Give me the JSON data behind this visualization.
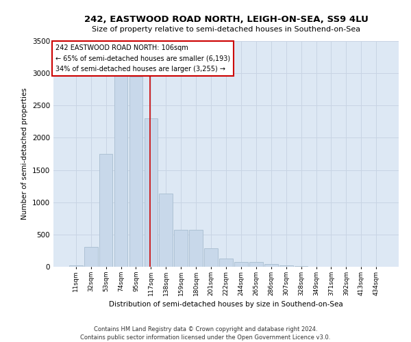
{
  "title1": "242, EASTWOOD ROAD NORTH, LEIGH-ON-SEA, SS9 4LU",
  "title2": "Size of property relative to semi-detached houses in Southend-on-Sea",
  "xlabel": "Distribution of semi-detached houses by size in Southend-on-Sea",
  "ylabel": "Number of semi-detached properties",
  "footer1": "Contains HM Land Registry data © Crown copyright and database right 2024.",
  "footer2": "Contains public sector information licensed under the Open Government Licence v3.0.",
  "annotation_line1": "242 EASTWOOD ROAD NORTH: 106sqm",
  "annotation_line2": "← 65% of semi-detached houses are smaller (6,193)",
  "annotation_line3": "34% of semi-detached houses are larger (3,255) →",
  "bar_color": "#c8d8ea",
  "bar_edgecolor": "#a8bdd0",
  "vline_color": "#cc0000",
  "annotation_box_edgecolor": "#cc0000",
  "grid_color": "#c8d4e4",
  "background_color": "#dde8f4",
  "categories": [
    "11sqm",
    "32sqm",
    "53sqm",
    "74sqm",
    "95sqm",
    "117sqm",
    "138sqm",
    "159sqm",
    "180sqm",
    "201sqm",
    "222sqm",
    "244sqm",
    "265sqm",
    "286sqm",
    "307sqm",
    "328sqm",
    "349sqm",
    "371sqm",
    "392sqm",
    "413sqm",
    "434sqm"
  ],
  "values": [
    22,
    310,
    1750,
    3080,
    2950,
    2300,
    1140,
    570,
    570,
    285,
    125,
    75,
    70,
    45,
    18,
    8,
    4,
    2,
    1,
    1,
    1
  ],
  "ylim": [
    0,
    3500
  ],
  "yticks": [
    0,
    500,
    1000,
    1500,
    2000,
    2500,
    3000,
    3500
  ],
  "vline_x": 4.94
}
